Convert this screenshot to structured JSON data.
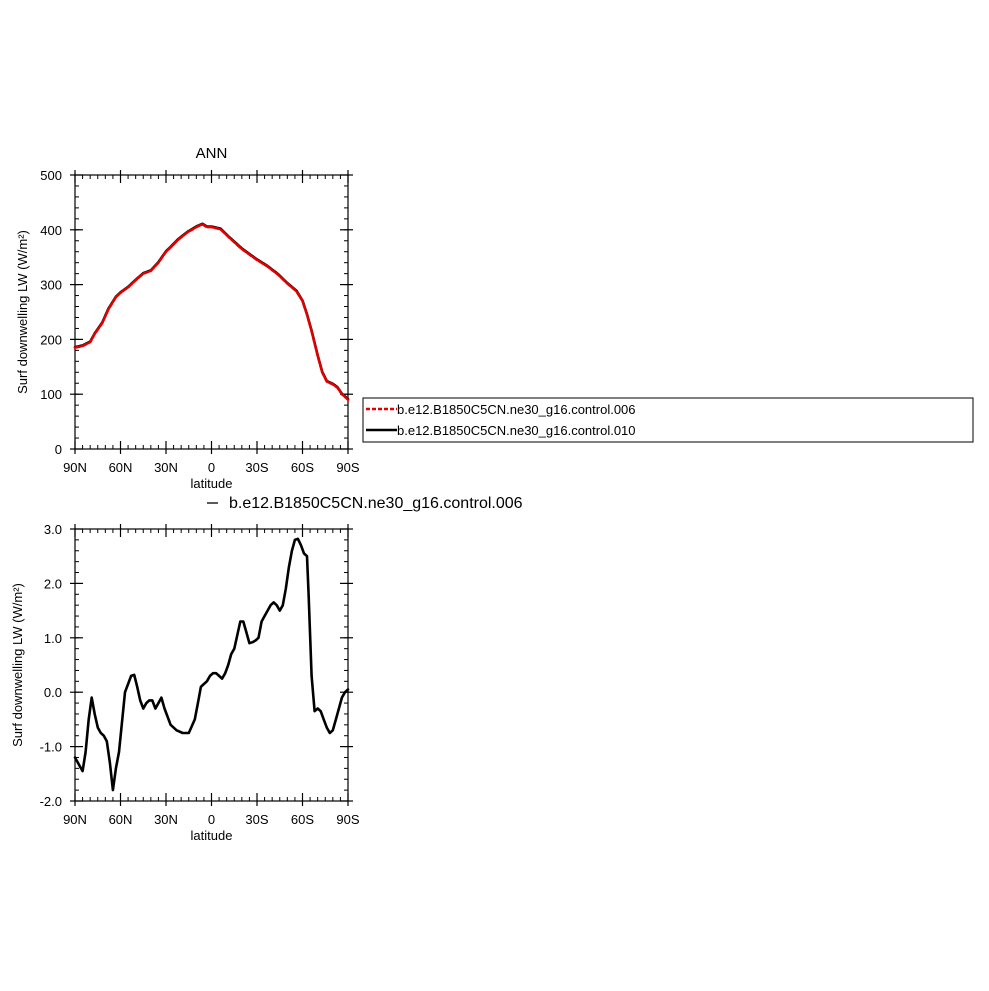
{
  "chart_data": [
    {
      "type": "line",
      "title": "ANN",
      "xlabel": "latitude",
      "ylabel": "Surf downwelling LW (W/m²)",
      "x_ticks": [
        "90N",
        "60N",
        "30N",
        "0",
        "30S",
        "60S",
        "90S"
      ],
      "x_tick_values": [
        90,
        60,
        30,
        0,
        -30,
        -60,
        -90
      ],
      "y_ticks": [
        "0",
        "100",
        "200",
        "300",
        "400",
        "500"
      ],
      "y_tick_values": [
        0,
        100,
        200,
        300,
        400,
        500
      ],
      "xlim": [
        90,
        -90
      ],
      "ylim": [
        0,
        500
      ],
      "legend": [
        "b.e12.B1850C5CN.ne30_g16.control.006",
        "b.e12.B1850C5CN.ne30_g16.control.010"
      ],
      "x": [
        90,
        85,
        80,
        77,
        72,
        68,
        63,
        60,
        55,
        50,
        45,
        40,
        35,
        30,
        27,
        22,
        16,
        10,
        6,
        3,
        0,
        -6,
        -12,
        -20,
        -30,
        -37,
        -44,
        -50,
        -56,
        -60,
        -63,
        -66,
        -70,
        -73,
        -76,
        -80,
        -83,
        -86,
        -88,
        -90
      ],
      "series": [
        {
          "name": "b.e12.B1850C5CN.ne30_g16.control.006",
          "color": "#e00000",
          "dash": true,
          "values": [
            185,
            188,
            195,
            210,
            230,
            255,
            277,
            285,
            295,
            308,
            320,
            325,
            340,
            360,
            368,
            382,
            395,
            405,
            410,
            405,
            405,
            401,
            385,
            365,
            345,
            333,
            318,
            302,
            288,
            270,
            245,
            215,
            170,
            140,
            123,
            118,
            112,
            100,
            95,
            90
          ]
        },
        {
          "name": "b.e12.B1850C5CN.ne30_g16.control.010",
          "color": "#000000",
          "dash": false,
          "values": [
            186,
            189,
            196,
            211,
            231,
            256,
            278,
            286,
            296,
            309,
            321,
            326,
            341,
            361,
            369,
            383,
            396,
            406,
            411,
            406,
            406,
            402,
            386,
            366,
            346,
            334,
            319,
            303,
            289,
            271,
            246,
            216,
            171,
            141,
            124,
            119,
            113,
            101,
            96,
            91
          ]
        }
      ]
    },
    {
      "type": "line",
      "title": "",
      "subtitle": "b.e12.B1850C5CN.ne30_g16.control.006",
      "xlabel": "latitude",
      "ylabel": "Surf downwelling LW (W/m²)",
      "x_ticks": [
        "90N",
        "60N",
        "30N",
        "0",
        "30S",
        "60S",
        "90S"
      ],
      "x_tick_values": [
        90,
        60,
        30,
        0,
        -30,
        -60,
        -90
      ],
      "y_ticks": [
        "-2.0",
        "-1.0",
        "0.0",
        "1.0",
        "2.0",
        "3.0"
      ],
      "y_tick_values": [
        -2,
        -1,
        0,
        1,
        2,
        3
      ],
      "xlim": [
        90,
        -90
      ],
      "ylim": [
        -2,
        3
      ],
      "x": [
        90,
        87,
        85,
        83,
        81,
        79,
        77,
        75,
        73,
        71,
        69,
        67,
        65,
        63,
        61,
        57,
        53,
        51,
        49,
        47,
        45,
        43,
        41,
        39,
        37,
        35,
        33,
        31,
        27,
        23,
        19,
        15,
        11,
        9,
        7,
        5,
        3,
        1,
        -1,
        -3,
        -5,
        -7,
        -9,
        -11,
        -13,
        -15,
        -17,
        -19,
        -21,
        -23,
        -25,
        -27,
        -29,
        -31,
        -33,
        -35,
        -37,
        -39,
        -41,
        -43,
        -45,
        -47,
        -49,
        -51,
        -53,
        -55,
        -57,
        -59,
        -61,
        -63,
        -64,
        -66,
        -68,
        -70,
        -72,
        -74,
        -76,
        -78,
        -80,
        -82,
        -84,
        -86,
        -88,
        -90
      ],
      "series": [
        {
          "name": "",
          "color": "#000000",
          "dash": false,
          "values": [
            -1.2,
            -1.35,
            -1.45,
            -1.1,
            -0.5,
            -0.1,
            -0.4,
            -0.65,
            -0.75,
            -0.8,
            -0.9,
            -1.3,
            -1.8,
            -1.4,
            -1.1,
            0.0,
            0.3,
            0.32,
            0.1,
            -0.15,
            -0.3,
            -0.2,
            -0.15,
            -0.15,
            -0.3,
            -0.2,
            -0.1,
            -0.3,
            -0.6,
            -0.7,
            -0.75,
            -0.75,
            -0.5,
            -0.2,
            0.1,
            0.15,
            0.2,
            0.3,
            0.35,
            0.35,
            0.3,
            0.25,
            0.35,
            0.5,
            0.7,
            0.8,
            1.05,
            1.3,
            1.3,
            1.1,
            0.9,
            0.92,
            0.95,
            1.0,
            1.3,
            1.4,
            1.5,
            1.6,
            1.65,
            1.6,
            1.5,
            1.6,
            1.9,
            2.3,
            2.6,
            2.8,
            2.82,
            2.7,
            2.55,
            2.5,
            1.8,
            0.3,
            -0.35,
            -0.3,
            -0.35,
            -0.5,
            -0.65,
            -0.75,
            -0.7,
            -0.5,
            -0.3,
            -0.1,
            0.0,
            0.05
          ]
        }
      ]
    }
  ]
}
